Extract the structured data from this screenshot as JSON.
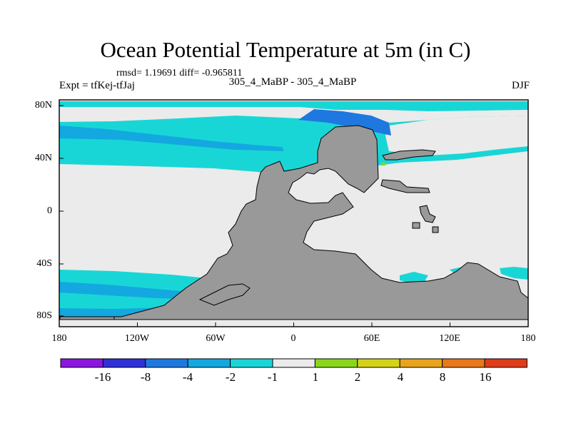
{
  "title": "Ocean Potential Temperature at 5m (in C)",
  "stats": "rmsd= 1.19691 diff= -0.965811",
  "experiment": "Expt = tfKej-tfJaj",
  "center_label": "305_4_MaBP - 305_4_MaBP",
  "season": "DJF",
  "axes": {
    "lon_ticks": [
      "180",
      "120W",
      "60W",
      "0",
      "60E",
      "120E",
      "180"
    ],
    "lat_ticks": [
      "80N",
      "40N",
      "0",
      "40S",
      "80S"
    ]
  },
  "colorbar": {
    "colors": [
      "#8a16e0",
      "#3030d8",
      "#1e78e0",
      "#13a8e0",
      "#19d6d6",
      "#ebebeb",
      "#8ad61c",
      "#d6d21a",
      "#e8a51c",
      "#e8781a",
      "#e03c1a"
    ],
    "labels": [
      "-16",
      "-8",
      "-4",
      "-2",
      "-1",
      "1",
      "2",
      "4",
      "8",
      "16"
    ]
  },
  "colors": {
    "land": "#999999",
    "neutral": "#ebebeb",
    "cyan": "#19d6d6",
    "light_blue": "#13a8e0",
    "mid_blue": "#1e78e0"
  }
}
